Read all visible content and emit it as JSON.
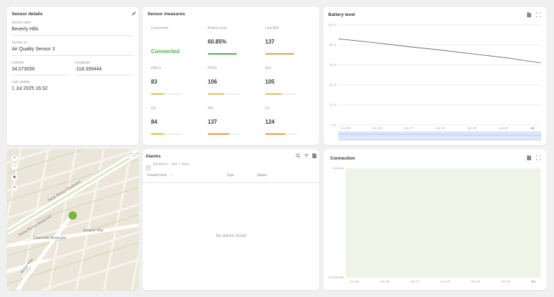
{
  "sensor_details": {
    "title": "Sensor details",
    "sensor_label_label": "Sensor label",
    "sensor_label_value": "Beverly Hills",
    "sensor_id_label": "Sensor id",
    "sensor_id_value": "Air Quality Sensor 3",
    "latitude_label": "Latitude",
    "latitude_value": "34.073056",
    "longitude_label": "Longitude",
    "longitude_value": "-118.399444",
    "last_update_label": "Last update",
    "last_update_value": "1 Jul 2025 16:32"
  },
  "sensor_measures": {
    "title": "Sensor measures",
    "items": [
      {
        "label": "Connection",
        "value": "Connected",
        "color": "#4caf50",
        "level": 0
      },
      {
        "label": "Battery level",
        "value": "60.85%",
        "color": "#4caf50",
        "level": 0.61
      },
      {
        "label": "Last AQI",
        "value": "137",
        "color": "#e89b3c",
        "level": 0.68
      },
      {
        "label": "PM2.5",
        "value": "83",
        "color": "#d9c53a",
        "level": 0.42
      },
      {
        "label": "PM10",
        "value": "106",
        "color": "#d9c53a",
        "level": 0.53
      },
      {
        "label": "NO₂",
        "value": "105",
        "color": "#d9c53a",
        "level": 0.53
      },
      {
        "label": "O3",
        "value": "84",
        "color": "#d9c53a",
        "level": 0.42
      },
      {
        "label": "NH₃",
        "value": "137",
        "color": "#e89b3c",
        "level": 0.68
      },
      {
        "label": "CL",
        "value": "124",
        "color": "#e89b3c",
        "level": 0.62
      }
    ]
  },
  "battery_chart": {
    "title": "Battery level",
    "export_icon": "file-icon",
    "fullscreen_icon": "fullscreen-icon"
  },
  "connection_chart": {
    "title": "Connection",
    "export_icon": "file-icon",
    "fullscreen_icon": "fullscreen-icon"
  },
  "chart_data": [
    {
      "type": "line",
      "title": "Battery level",
      "x": [
        "Jun 25",
        "Jun 26",
        "Jun 27",
        "Jun 28",
        "Jun 29",
        "Jun 30",
        "Jul"
      ],
      "yticks": [
        "100 %",
        "80 %",
        "60 %",
        "40 %",
        "20 %",
        "0 %"
      ],
      "ylim": [
        0,
        100
      ],
      "series": [
        {
          "values": [
            86,
            82.5,
            78.5,
            75,
            71,
            67,
            62
          ],
          "color": "#555555"
        }
      ],
      "grid": true
    },
    {
      "type": "area",
      "title": "Connection",
      "x": [
        "Jun 25",
        "Jun 26",
        "Jun 27",
        "Jun 28",
        "Jun 29",
        "Jun 30",
        "Jul"
      ],
      "yticks": [
        "Inactive",
        "Connected"
      ],
      "fill_color": "#eef5e6"
    }
  ],
  "alarms": {
    "title": "Alarms",
    "time_window": "Realtime - last 7 days",
    "columns": [
      "Created time",
      "Type",
      "Status"
    ],
    "empty_text": "No alarms found"
  },
  "map": {
    "streets": [
      "Santa Monica Boulevard",
      "Santa Monica Boulevard",
      "Charleville Boulevard",
      "Gregory Way",
      "Burton Way"
    ],
    "marker_color": "#7cb342"
  }
}
